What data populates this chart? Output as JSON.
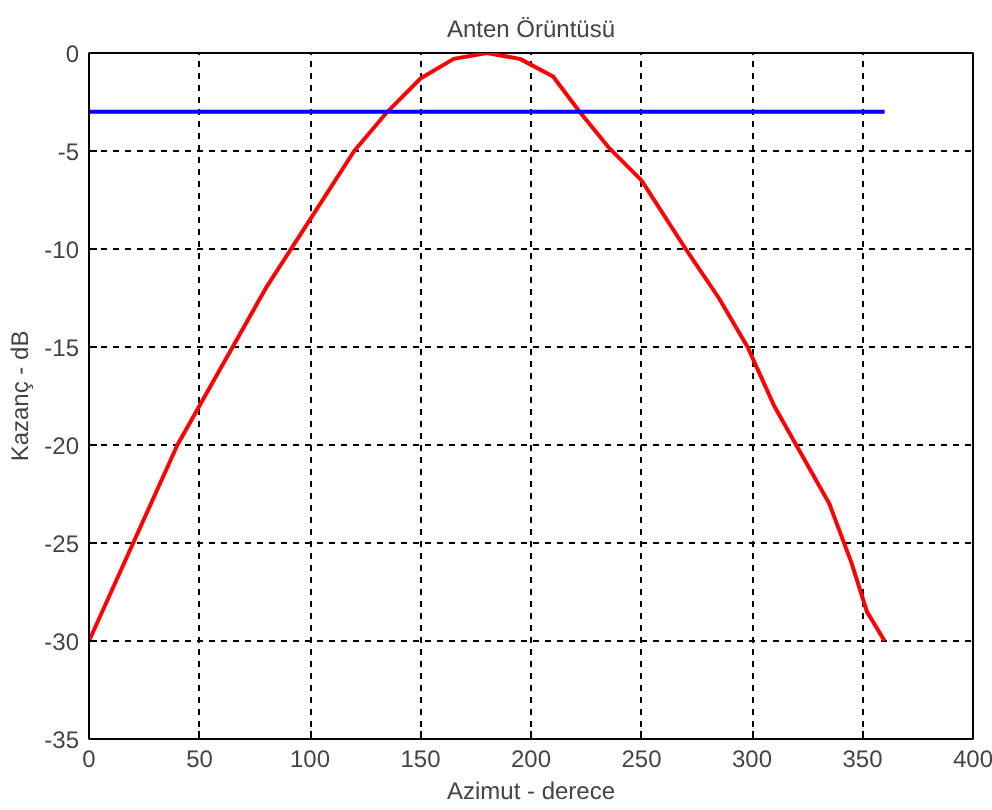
{
  "chart_data": {
    "type": "line",
    "title": "Anten Örüntüsü",
    "xlabel": "Azimut - derece",
    "ylabel": "Kazanç - dB",
    "xlim": [
      0,
      400
    ],
    "ylim": [
      -35,
      0
    ],
    "xticks": [
      0,
      50,
      100,
      150,
      200,
      250,
      300,
      350,
      400
    ],
    "yticks": [
      -35,
      -30,
      -25,
      -20,
      -15,
      -10,
      -5,
      0
    ],
    "grid": true,
    "line_style": "solid",
    "series": [
      {
        "color": "#ff0000",
        "x": [
          0,
          10,
          20,
          30,
          40,
          50,
          65,
          80,
          100,
          120,
          135,
          150,
          165,
          180,
          195,
          210,
          222,
          235,
          250,
          270,
          285,
          298,
          310,
          320,
          335,
          345,
          352,
          360
        ],
        "values": [
          -30,
          -27.5,
          -25,
          -22.5,
          -20,
          -18,
          -15,
          -12,
          -8.5,
          -5,
          -3,
          -1.3,
          -0.3,
          0,
          -0.3,
          -1.2,
          -3,
          -4.8,
          -6.5,
          -10,
          -12.5,
          -15,
          -18,
          -20,
          -23,
          -26,
          -28.5,
          -30
        ]
      },
      {
        "color": "#0000ff",
        "x": [
          0,
          360
        ],
        "values": [
          -3,
          -3
        ]
      }
    ]
  }
}
